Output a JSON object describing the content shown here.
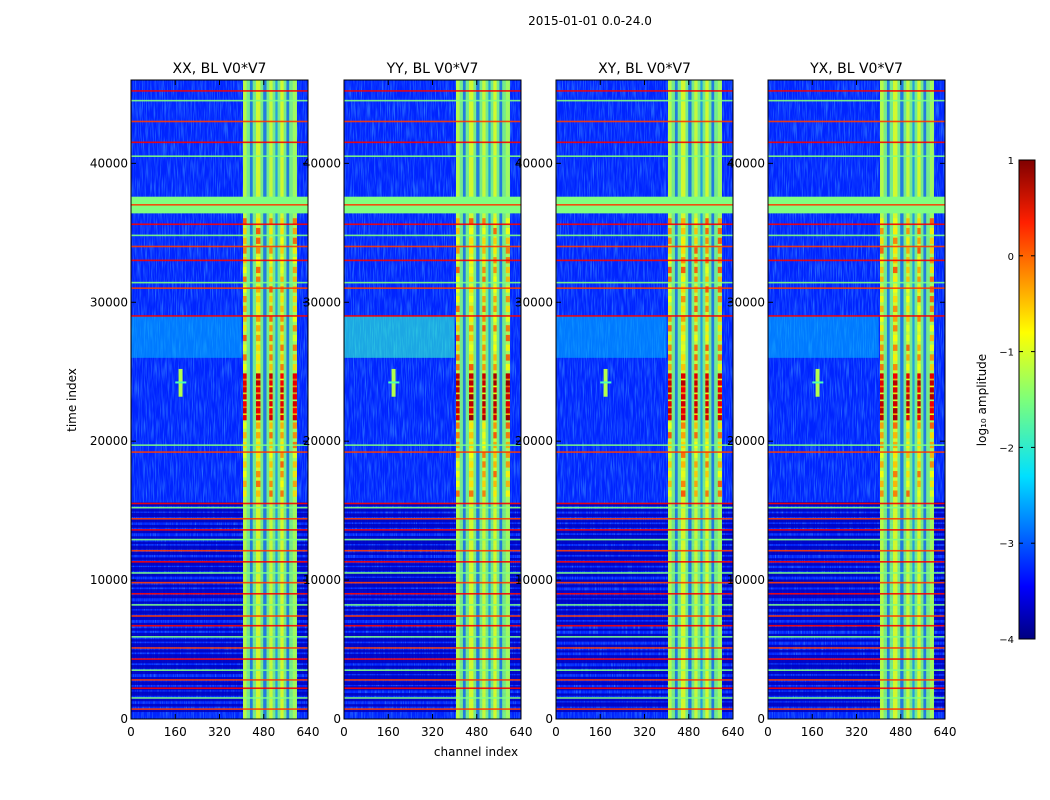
{
  "chart_data": {
    "type": "heatmap",
    "suptitle": "2015-01-01 0.0-24.0",
    "xlabel": "channel index",
    "ylabel": "time index",
    "xlim": [
      0,
      640
    ],
    "ylim": [
      0,
      46000
    ],
    "xticks": [
      "0",
      "160",
      "320",
      "480",
      "640"
    ],
    "xtick_values": [
      0,
      160,
      320,
      480,
      640
    ],
    "yticks": [
      "0",
      "10000",
      "20000",
      "30000",
      "40000"
    ],
    "ytick_values": [
      0,
      10000,
      20000,
      30000,
      40000
    ],
    "panels": [
      {
        "title": "XX, BL V0*V7",
        "burst_level": 0.8
      },
      {
        "title": "YY, BL V0*V7",
        "burst_level": 1.0
      },
      {
        "title": "XY, BL V0*V7",
        "burst_level": 0.85
      },
      {
        "title": "YX, BL V0*V7",
        "burst_level": 0.9
      }
    ],
    "colorbar": {
      "label": "log₁₀ amplitude",
      "range": [
        -4,
        1
      ],
      "ticks": [
        "1",
        "0",
        "−1",
        "−2",
        "−3",
        "−4"
      ],
      "tick_values": [
        1,
        0,
        -1,
        -2,
        -3,
        -4
      ],
      "colormap": "jet"
    },
    "band_channels": [
      405,
      600
    ],
    "horizontal_flag_rows": [
      700,
      1500,
      2200,
      2800,
      3500,
      4300,
      5100,
      5900,
      6700,
      7400,
      8200,
      9000,
      9800,
      10500,
      11300,
      12100,
      12900,
      13600,
      14400,
      15200,
      15500,
      19200,
      19700,
      29000,
      31000,
      31400,
      33000,
      34000,
      34800,
      35600,
      37000,
      40500,
      41500,
      43000,
      44500,
      45200
    ],
    "burst_time_range": [
      21500,
      25000
    ]
  }
}
